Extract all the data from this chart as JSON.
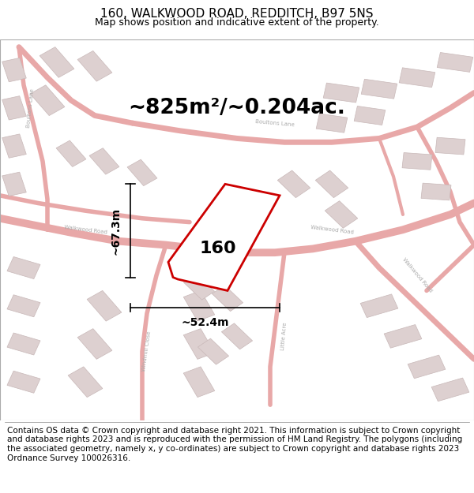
{
  "title": "160, WALKWOOD ROAD, REDDITCH, B97 5NS",
  "subtitle": "Map shows position and indicative extent of the property.",
  "area_label": "~825m²/~0.204ac.",
  "house_number": "160",
  "dim_vertical": "~67.3m",
  "dim_horizontal": "~52.4m",
  "footer_text": "Contains OS data © Crown copyright and database right 2021. This information is subject to Crown copyright and database rights 2023 and is reproduced with the permission of HM Land Registry. The polygons (including the associated geometry, namely x, y co-ordinates) are subject to Crown copyright and database rights 2023 Ordnance Survey 100026316.",
  "map_bg": "#f5f0f0",
  "plot_color": "#cc0000",
  "title_fontsize": 11,
  "subtitle_fontsize": 9,
  "area_fontsize": 19,
  "dim_fontsize": 10,
  "footer_fontsize": 7.5,
  "label_color": "#aaaaaa",
  "road_color": "#e8a8a8",
  "road_fill": "#f0e8e8",
  "building_face": "#ddd0d0",
  "building_edge": "#c8b8b8"
}
